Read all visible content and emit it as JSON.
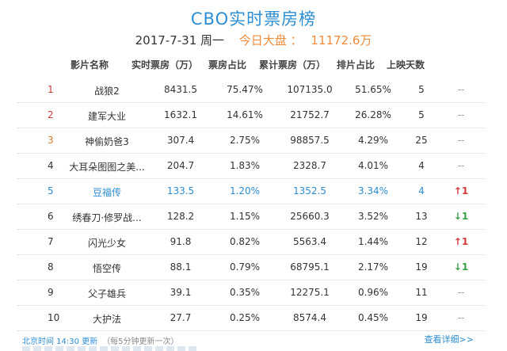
{
  "header": {
    "title": "CBO实时票房榜",
    "date": "2017-7-31 周一",
    "box_label": "今日大盘 ：",
    "box_value": "11172.6万"
  },
  "columns": {
    "name": "影片名称",
    "realtime": "实时票房（万）",
    "share": "票房占比",
    "cumulative": "累计票房（万）",
    "schedule": "排片占比",
    "days": "上映天数"
  },
  "rows": [
    {
      "rank": "1",
      "name": "战狼2",
      "realtime": "8431.5",
      "share": "75.47%",
      "cumulative": "107135.0",
      "schedule": "51.65%",
      "days": "5",
      "trend": "--"
    },
    {
      "rank": "2",
      "name": "建军大业",
      "realtime": "1632.1",
      "share": "14.61%",
      "cumulative": "21752.7",
      "schedule": "26.28%",
      "days": "5",
      "trend": "--"
    },
    {
      "rank": "3",
      "name": "神偷奶爸3",
      "realtime": "307.4",
      "share": "2.75%",
      "cumulative": "98857.5",
      "schedule": "4.29%",
      "days": "25",
      "trend": "--"
    },
    {
      "rank": "4",
      "name": "大耳朵图图之美...",
      "realtime": "204.7",
      "share": "1.83%",
      "cumulative": "2328.7",
      "schedule": "4.01%",
      "days": "4",
      "trend": "--"
    },
    {
      "rank": "5",
      "name": "豆福传",
      "realtime": "133.5",
      "share": "1.20%",
      "cumulative": "1352.5",
      "schedule": "3.34%",
      "days": "4",
      "trend": "↑1"
    },
    {
      "rank": "6",
      "name": "绣春刀·修罗战...",
      "realtime": "128.2",
      "share": "1.15%",
      "cumulative": "25660.3",
      "schedule": "3.52%",
      "days": "13",
      "trend": "↓1"
    },
    {
      "rank": "7",
      "name": "闪光少女",
      "realtime": "91.8",
      "share": "0.82%",
      "cumulative": "5563.4",
      "schedule": "1.44%",
      "days": "12",
      "trend": "↑1"
    },
    {
      "rank": "8",
      "name": "悟空传",
      "realtime": "88.1",
      "share": "0.79%",
      "cumulative": "68795.1",
      "schedule": "2.17%",
      "days": "19",
      "trend": "↓1"
    },
    {
      "rank": "9",
      "name": "父子雄兵",
      "realtime": "39.1",
      "share": "0.35%",
      "cumulative": "12275.1",
      "schedule": "0.96%",
      "days": "11",
      "trend": "--"
    },
    {
      "rank": "10",
      "name": "大护法",
      "realtime": "27.7",
      "share": "0.25%",
      "cumulative": "8574.4",
      "schedule": "0.45%",
      "days": "19",
      "trend": "--"
    }
  ],
  "footer": {
    "update_time": "北京时间 14:30 更新",
    "update_note": "（每5分钟更新一次）",
    "more_link": "查看详细>>"
  },
  "colors": {
    "accent": "#2d8ed4",
    "orange": "#ef8b3a",
    "up": "#d23a3a",
    "down": "#3aa048"
  }
}
